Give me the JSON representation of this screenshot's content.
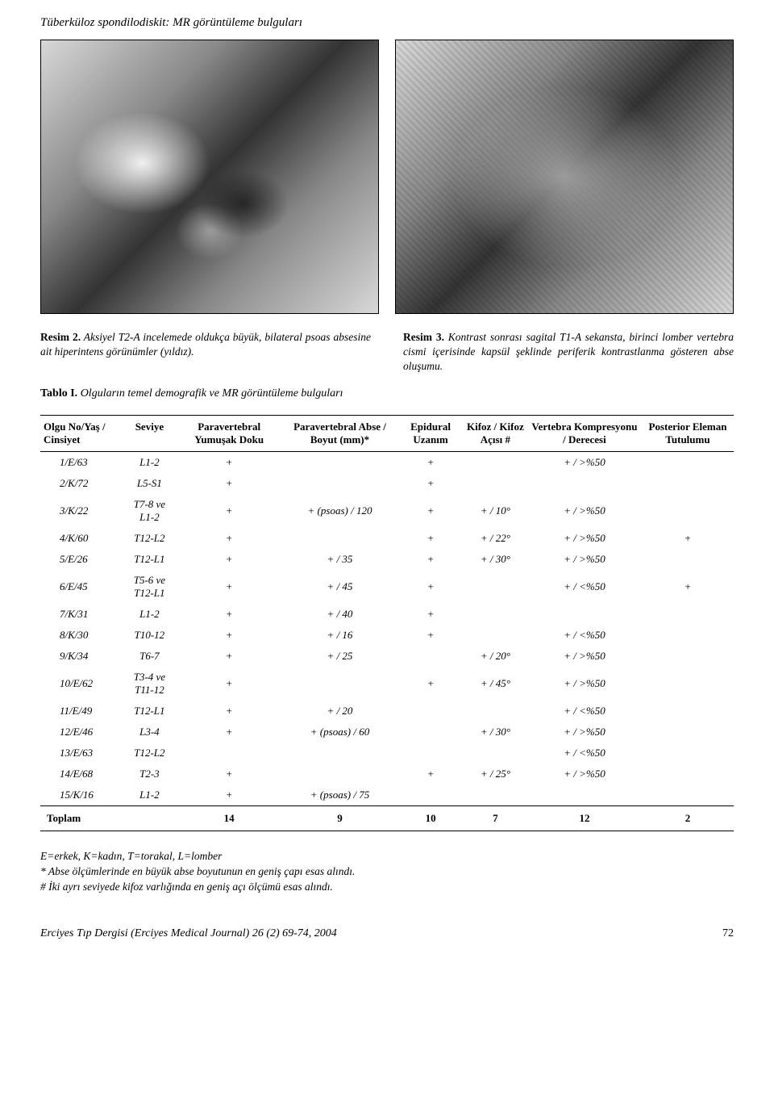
{
  "header_title": "Tüberküloz spondilodiskit: MR görüntüleme bulguları",
  "caption_left_label": "Resim 2.",
  "caption_left_text": "Aksiyel T2-A incelemede oldukça büyük, bilateral psoas absesine ait hiperintens görünümler (yıldız).",
  "caption_right_label": "Resim 3.",
  "caption_right_text": "Kontrast sonrası sagital T1-A sekansta, birinci lomber vertebra cismi içerisinde kapsül şeklinde periferik kontrastlanma gösteren abse oluşumu.",
  "table_title_label": "Tablo I.",
  "table_title_text": "Olguların temel demografik ve MR görüntüleme bulguları",
  "table": {
    "columns": [
      "Olgu No/Yaş / Cinsiyet",
      "Seviye",
      "Paravertebral Yumuşak Doku",
      "Paravertebral Abse / Boyut (mm)*",
      "Epidural Uzanım",
      "Kifoz / Kifoz Açısı #",
      "Vertebra Kompresyonu / Derecesi",
      "Posterior Eleman Tutulumu"
    ],
    "rows": [
      [
        "1/E/63",
        "L1-2",
        "+",
        "",
        "+",
        "",
        "+ / >%50",
        ""
      ],
      [
        "2/K/72",
        "L5-S1",
        "+",
        "",
        "+",
        "",
        "",
        ""
      ],
      [
        "3/K/22",
        "T7-8 ve  L1-2",
        "+",
        "+ (psoas) / 120",
        "+",
        "+ / 10°",
        "+ / >%50",
        ""
      ],
      [
        "4/K/60",
        "T12-L2",
        "+",
        "",
        "+",
        "+ / 22°",
        "+ / >%50",
        "+"
      ],
      [
        "5/E/26",
        "T12-L1",
        "+",
        "+ / 35",
        "+",
        "+ / 30°",
        "+ / >%50",
        ""
      ],
      [
        "6/E/45",
        "T5-6 ve T12-L1",
        "+",
        "+ / 45",
        "+",
        "",
        "+ / <%50",
        "+"
      ],
      [
        "7/K/31",
        "L1-2",
        "+",
        "+ / 40",
        "+",
        "",
        "",
        ""
      ],
      [
        "8/K/30",
        "T10-12",
        "+",
        "+ / 16",
        "+",
        "",
        "+ / <%50",
        ""
      ],
      [
        "9/K/34",
        "T6-7",
        "+",
        "+ / 25",
        "",
        "+ / 20°",
        "+ / >%50",
        ""
      ],
      [
        "10/E/62",
        "T3-4 ve T11-12",
        "+",
        "",
        "+",
        "+ / 45°",
        "+ / >%50",
        ""
      ],
      [
        "11/E/49",
        "T12-L1",
        "+",
        "+ / 20",
        "",
        "",
        "+ / <%50",
        ""
      ],
      [
        "12/E/46",
        "L3-4",
        "+",
        "+ (psoas) / 60",
        "",
        "+ / 30°",
        "+ / >%50",
        ""
      ],
      [
        "13/E/63",
        "T12-L2",
        "",
        "",
        "",
        "",
        "+ / <%50",
        ""
      ],
      [
        "14/E/68",
        "T2-3",
        "+",
        "",
        "+",
        "+ / 25°",
        "+ / >%50",
        ""
      ],
      [
        "15/K/16",
        "L1-2",
        "+",
        "+ (psoas) / 75",
        "",
        "",
        "",
        ""
      ]
    ],
    "total_label": "Toplam",
    "totals": [
      "14",
      "9",
      "10",
      "7",
      "12",
      "2"
    ]
  },
  "footnotes": [
    "E=erkek, K=kadın, T=torakal, L=lomber",
    "* Abse ölçümlerinde en büyük abse boyutunun en geniş çapı esas alındı.",
    "# İki ayrı seviyede kifoz varlığında en geniş açı ölçümü esas alındı."
  ],
  "footer_journal": "Erciyes Tıp Dergisi (Erciyes Medical Journal) 26 (2) 69-74, 2004",
  "footer_page": "72"
}
